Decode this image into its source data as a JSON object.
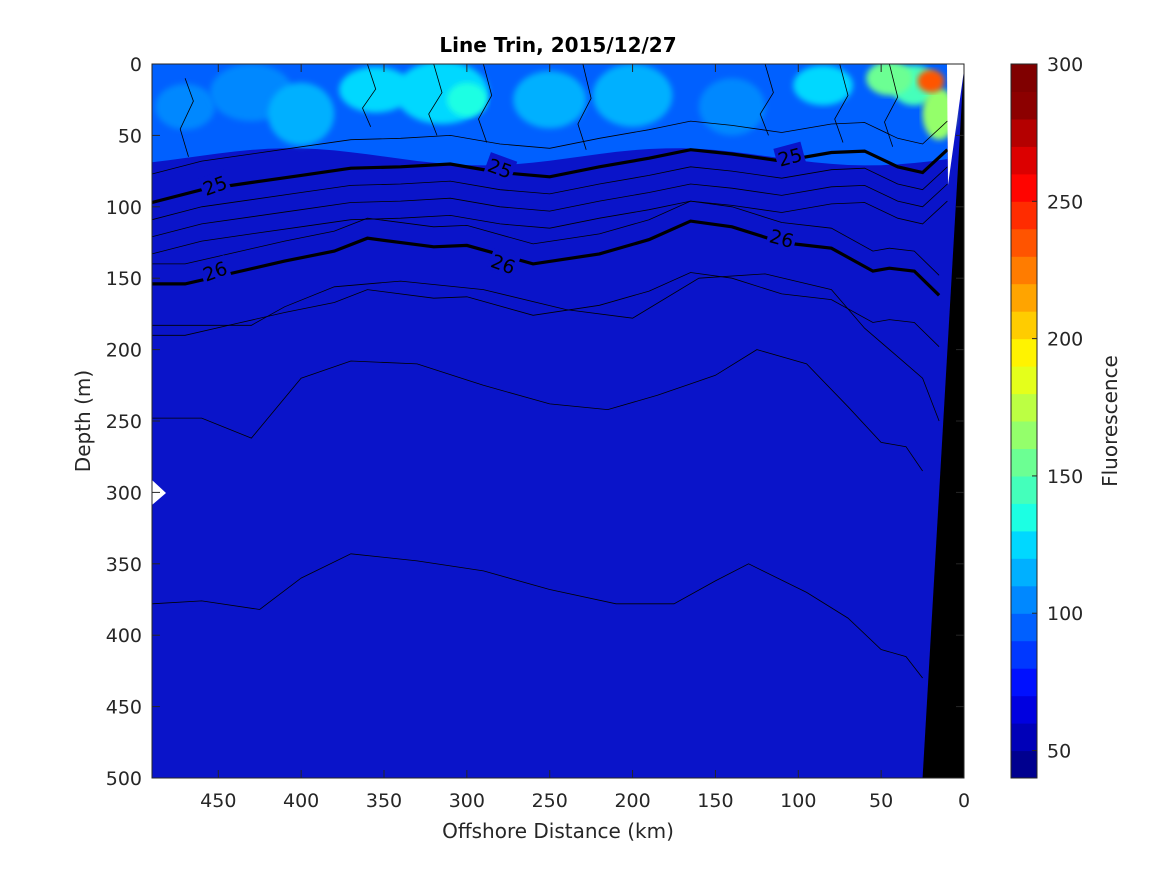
{
  "chart_data": {
    "type": "contour",
    "title": "Line Trin, 2015/12/27",
    "xlabel": "Offshore Distance (km)",
    "ylabel": "Depth (m)",
    "colorbar_label": "Fluorescence",
    "xlim": [
      490,
      0
    ],
    "ylim": [
      500,
      0
    ],
    "x_reversed": true,
    "y_reversed": true,
    "x_ticks": [
      450,
      400,
      350,
      300,
      250,
      200,
      150,
      100,
      50,
      0
    ],
    "y_ticks": [
      0,
      50,
      100,
      150,
      200,
      250,
      300,
      350,
      400,
      450,
      500
    ],
    "colorbar_range": [
      40,
      300
    ],
    "colorbar_ticks": [
      50,
      100,
      150,
      200,
      250,
      300
    ],
    "colorbar_levels": [
      40,
      50,
      60,
      70,
      80,
      90,
      100,
      110,
      120,
      130,
      140,
      150,
      160,
      170,
      180,
      190,
      200,
      210,
      220,
      230,
      240,
      250,
      260,
      270,
      280,
      290,
      300
    ],
    "colormap": [
      "#00008f",
      "#0000b8",
      "#0000e0",
      "#0010ff",
      "#0038ff",
      "#0060ff",
      "#0088ff",
      "#00b0ff",
      "#00d8ff",
      "#1cffe3",
      "#44ffbb",
      "#6cff93",
      "#94ff6b",
      "#bcff43",
      "#e4ff1b",
      "#fff300",
      "#ffcc00",
      "#ffa400",
      "#ff7c00",
      "#ff5400",
      "#ff2c00",
      "#ff0400",
      "#dc0000",
      "#b40000",
      "#8c0000",
      "#800000"
    ],
    "fluorescence_field": {
      "background_value": 62,
      "surface_layer": {
        "depth_range": [
          0,
          65
        ],
        "typical_value": 100,
        "peak_values": [
          130,
          160,
          230
        ]
      }
    },
    "density_contours": [
      {
        "level": 25,
        "bold": true,
        "labeled": true,
        "x": [
          490,
          460,
          430,
          400,
          370,
          340,
          310,
          280,
          250,
          220,
          190,
          165,
          140,
          110,
          80,
          60,
          40,
          25,
          10
        ],
        "y": [
          97,
          88,
          83,
          78,
          73,
          72,
          70,
          76,
          79,
          72,
          66,
          60,
          63,
          68,
          62,
          61,
          72,
          76,
          60
        ]
      },
      {
        "level": 26,
        "bold": true,
        "labeled": true,
        "x": [
          490,
          470,
          440,
          410,
          380,
          360,
          320,
          300,
          260,
          220,
          190,
          165,
          140,
          110,
          80,
          55,
          45,
          30,
          15
        ],
        "y": [
          154,
          154,
          146,
          138,
          131,
          122,
          128,
          127,
          140,
          133,
          123,
          110,
          114,
          125,
          129,
          145,
          143,
          145,
          162
        ]
      }
    ],
    "contour_labels": [
      {
        "text": "25",
        "x": 452,
        "y": 85,
        "angle": -20
      },
      {
        "text": "25",
        "x": 280,
        "y": 73,
        "angle": 20
      },
      {
        "text": "25",
        "x": 105,
        "y": 65,
        "angle": -15
      },
      {
        "text": "26",
        "x": 452,
        "y": 145,
        "angle": -20
      },
      {
        "text": "26",
        "x": 278,
        "y": 140,
        "angle": 20
      },
      {
        "text": "26",
        "x": 110,
        "y": 122,
        "angle": 15
      }
    ],
    "bathymetry": {
      "color": "#000000",
      "surface_x": 0,
      "bottom_x": 25
    }
  }
}
